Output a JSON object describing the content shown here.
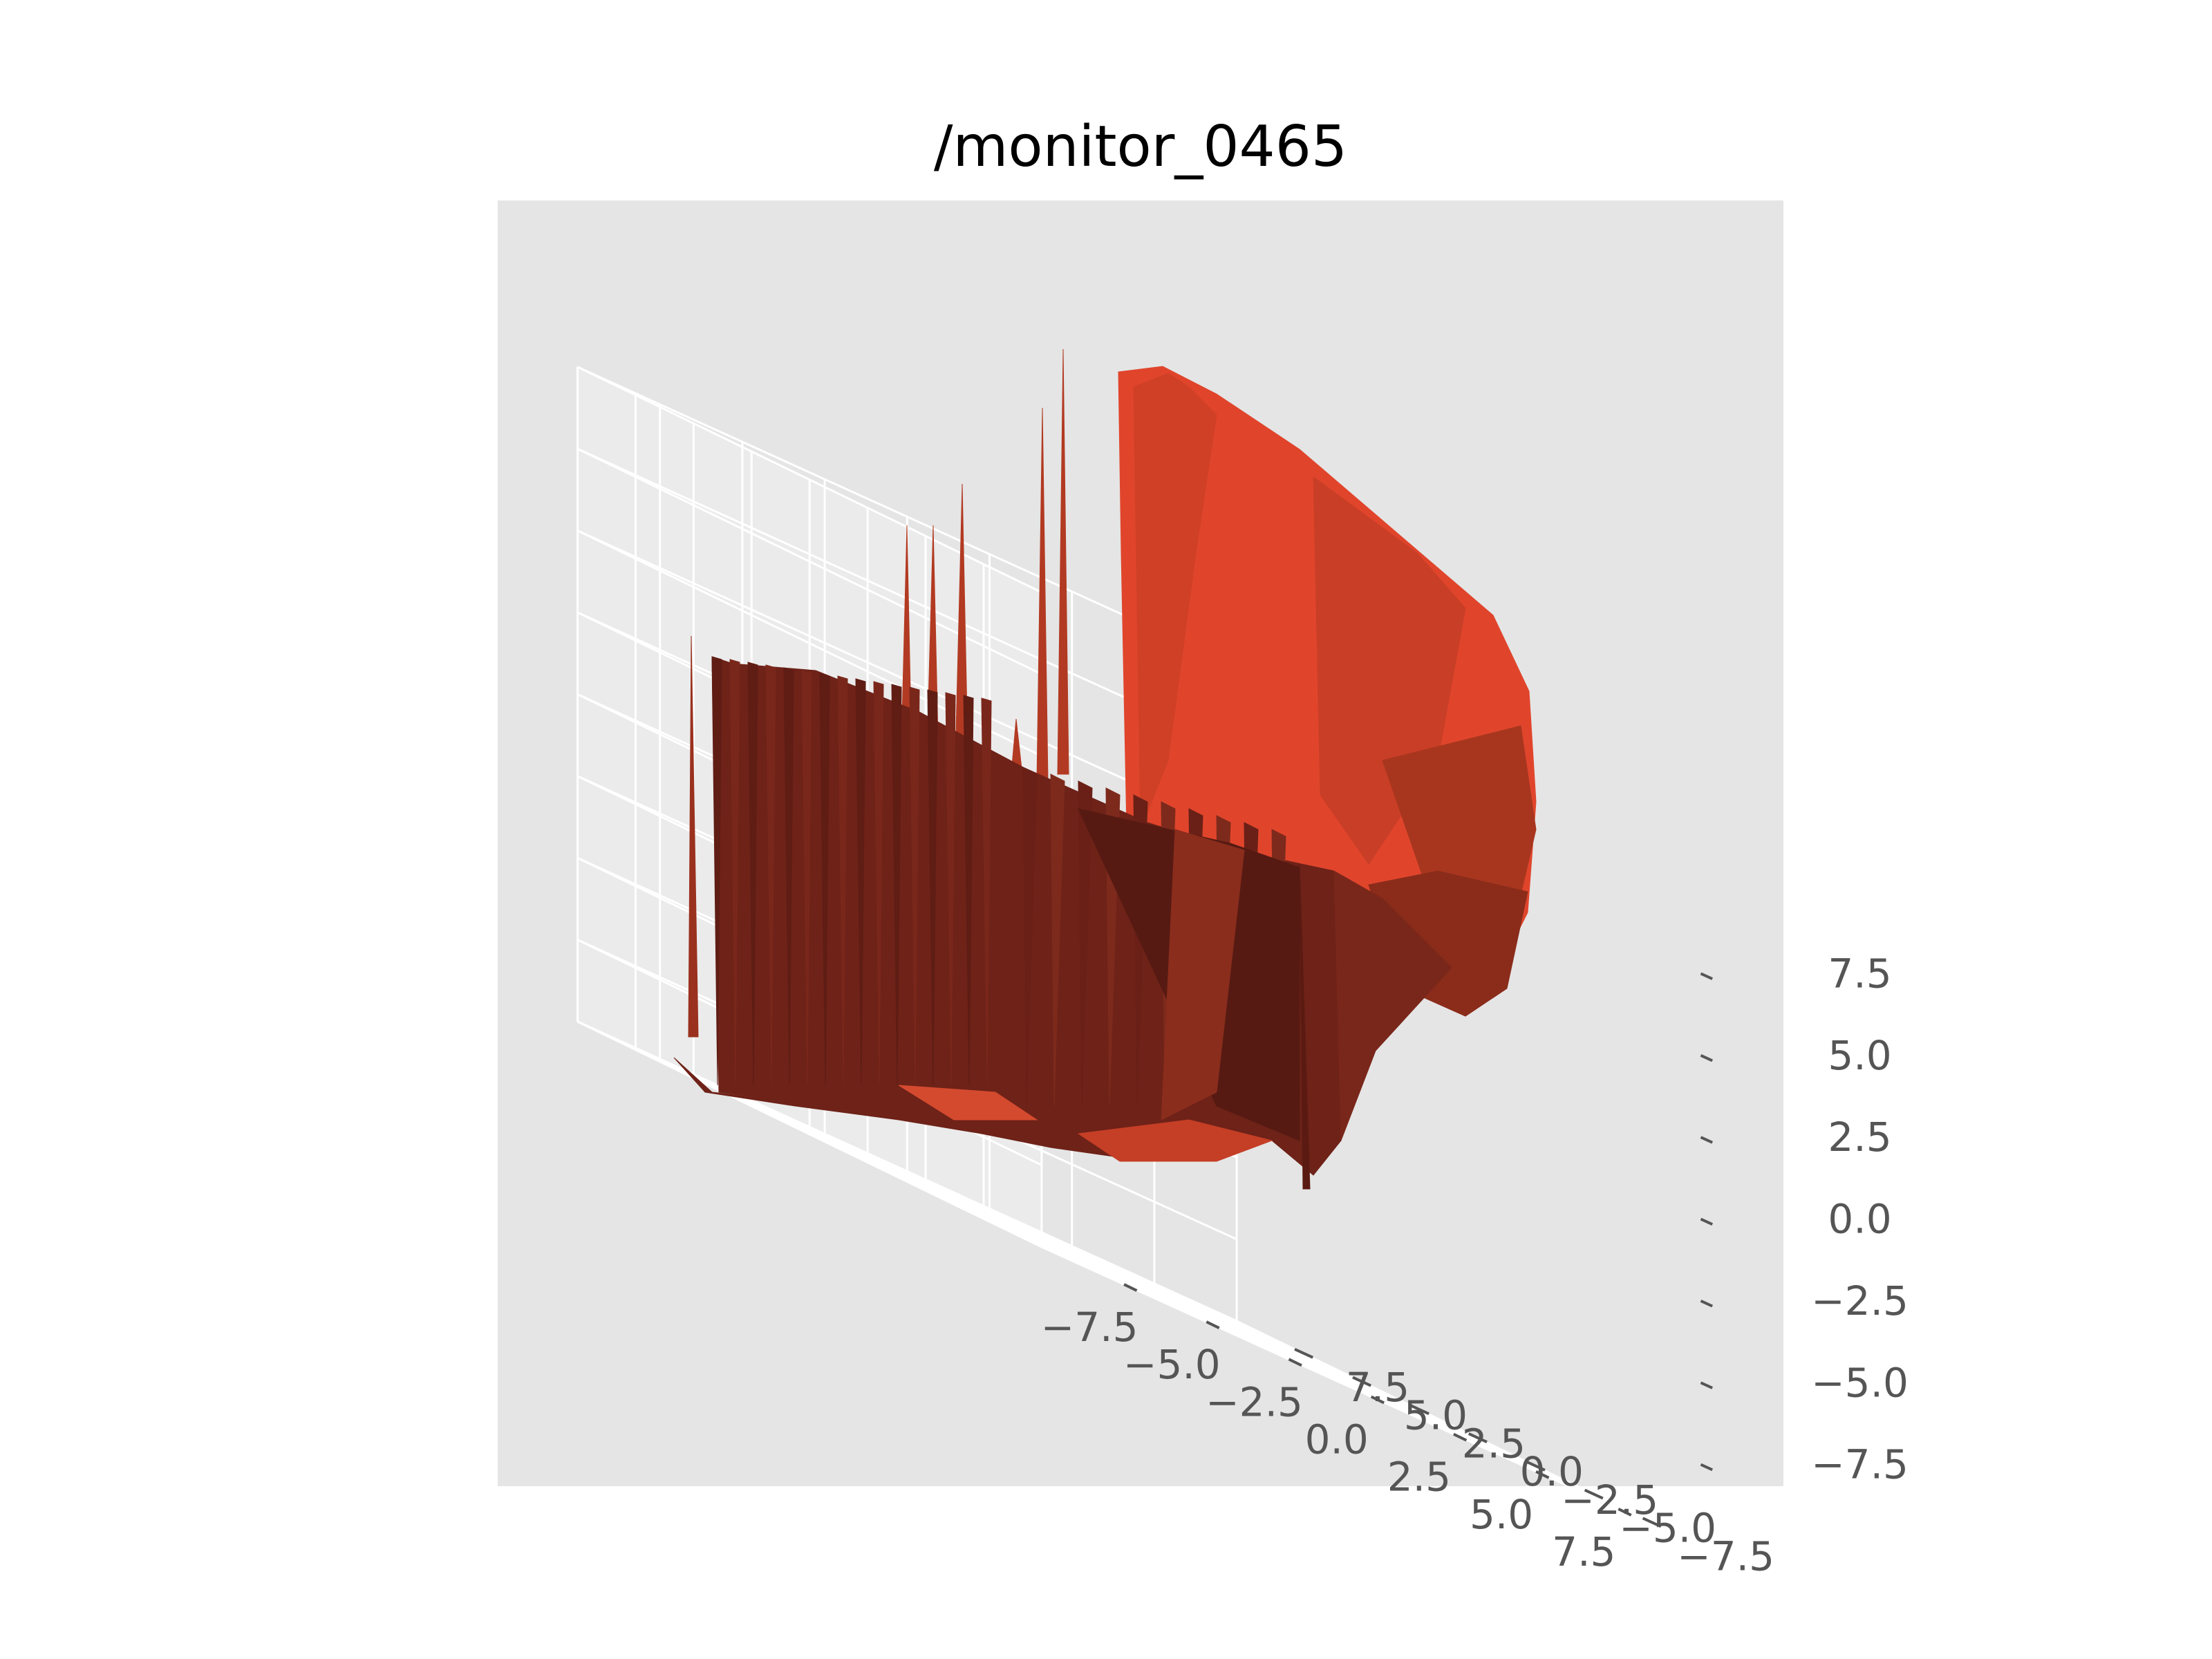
{
  "chart_data": {
    "type": "surface3d",
    "title": "/monitor_0465",
    "xlabel": "",
    "ylabel": "",
    "zlabel": "",
    "x_ticks": [
      "−7.5",
      "−5.0",
      "−2.5",
      "0.0",
      "2.5",
      "5.0",
      "7.5"
    ],
    "y_ticks": [
      "−7.5",
      "−5.0",
      "−2.5",
      "0.0",
      "2.5",
      "5.0",
      "7.5"
    ],
    "z_ticks": [
      "7.5",
      "5.0",
      "2.5",
      "0.0",
      "−2.5",
      "−5.0",
      "−7.5"
    ],
    "xlim": [
      -10,
      10
    ],
    "ylim": [
      -10,
      10
    ],
    "zlim": [
      -10,
      10
    ],
    "grid": true,
    "style": "ggplot",
    "colors": {
      "pane_back": "#e5e5e5",
      "pane_side": "#ebebeb",
      "pane_floor": "#e2e2e2",
      "surface_light": "#e0452c",
      "surface_mid": "#b23a22",
      "surface_dark": "#6e2218",
      "surface_darkest": "#561a12"
    }
  }
}
